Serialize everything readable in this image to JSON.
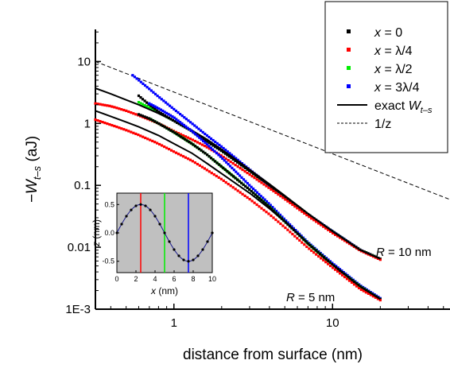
{
  "chart_data": [
    {
      "type": "scatter",
      "title": "",
      "xlabel": "distance from surface (nm)",
      "ylabel_prefix": "−W",
      "ylabel_sub": "t–s",
      "ylabel_suffix": " (aJ)",
      "xscale": "log",
      "yscale": "log",
      "xlim": [
        0.32,
        55
      ],
      "ylim": [
        0.001,
        33
      ],
      "xticks": [
        1,
        10
      ],
      "xtick_labels": [
        "1",
        "10"
      ],
      "yticks": [
        0.001,
        0.01,
        0.1,
        1,
        10
      ],
      "ytick_labels": [
        "1E-3",
        "0.01",
        "0.1",
        "1",
        "10"
      ],
      "grid": false,
      "legend_position": "top-right",
      "legend": [
        {
          "key": "x0",
          "pre": "x",
          "post": " = 0",
          "color": "#000000",
          "marker": "square"
        },
        {
          "key": "xq",
          "pre": "x",
          "post": " = λ/4",
          "color": "#ff0000",
          "marker": "square"
        },
        {
          "key": "xh",
          "pre": "x",
          "post": " = λ/2",
          "color": "#00ee00",
          "marker": "square"
        },
        {
          "key": "x3q",
          "pre": "x",
          "post": " = 3λ/4",
          "color": "#0000ff",
          "marker": "square"
        },
        {
          "key": "exact",
          "pre": "exact W",
          "sub": "t–s",
          "post": "",
          "color": "#000000",
          "marker": "line"
        },
        {
          "key": "ref",
          "pre": "1/z",
          "post": "",
          "color": "#000000",
          "marker": "dash"
        }
      ],
      "reference_line": {
        "name": "1/z",
        "x": [
          0.32,
          55
        ],
        "y": [
          10,
          0.059
        ]
      },
      "groups": [
        {
          "annotation_italic": "R",
          "annotation_rest": " = 10 nm",
          "series": [
            {
              "key": "x3q",
              "color": "#0000ff",
              "x": [
                0.55,
                0.6,
                0.7,
                0.8,
                1,
                1.3,
                1.6,
                2,
                3,
                4,
                5,
                7,
                10,
                15,
                20
              ],
              "y": [
                6.0,
                5.0,
                3.6,
                2.7,
                1.7,
                1.0,
                0.65,
                0.42,
                0.18,
                0.1,
                0.065,
                0.034,
                0.018,
                0.009,
                0.0065
              ]
            },
            {
              "key": "xh",
              "color": "#00ee00",
              "x": [
                0.6,
                0.7,
                0.8,
                1,
                1.3,
                1.6,
                2,
                3,
                4,
                5,
                7,
                10,
                15,
                20
              ],
              "y": [
                2.2,
                1.8,
                1.5,
                1.1,
                0.75,
                0.52,
                0.36,
                0.17,
                0.1,
                0.065,
                0.034,
                0.018,
                0.009,
                0.0065
              ]
            },
            {
              "key": "x0",
              "color": "#000000",
              "x": [
                0.6,
                0.7,
                0.8,
                1,
                1.3,
                1.6,
                2,
                3,
                4,
                5,
                7,
                10,
                15,
                20
              ],
              "y": [
                2.8,
                2.0,
                1.55,
                1.1,
                0.75,
                0.52,
                0.36,
                0.17,
                0.1,
                0.065,
                0.034,
                0.018,
                0.009,
                0.0065
              ]
            },
            {
              "key": "xq",
              "color": "#ff0000",
              "x": [
                0.32,
                0.4,
                0.5,
                0.6,
                0.8,
                1,
                1.3,
                1.6,
                2,
                3,
                4,
                5,
                7,
                10,
                15,
                20
              ],
              "y": [
                2.1,
                1.9,
                1.6,
                1.35,
                1.0,
                0.75,
                0.55,
                0.42,
                0.3,
                0.15,
                0.09,
                0.06,
                0.032,
                0.017,
                0.0088,
                0.0063
              ]
            },
            {
              "key": "exact",
              "color": "#000000",
              "x": [
                0.32,
                0.4,
                0.5,
                0.6,
                0.8,
                1,
                1.3,
                1.6,
                2,
                3,
                4,
                5,
                7,
                10,
                15,
                20
              ],
              "y": [
                3.7,
                3.0,
                2.4,
                2.0,
                1.45,
                1.1,
                0.77,
                0.56,
                0.38,
                0.18,
                0.105,
                0.068,
                0.035,
                0.018,
                0.009,
                0.0065
              ]
            }
          ]
        },
        {
          "annotation_italic": "R",
          "annotation_rest": " = 5 nm",
          "series": [
            {
              "key": "x3q",
              "color": "#0000ff",
              "x": [
                0.7,
                0.8,
                1,
                1.3,
                1.6,
                2,
                3,
                4,
                5,
                7,
                10,
                15,
                20
              ],
              "y": [
                2.1,
                1.75,
                1.25,
                0.75,
                0.47,
                0.28,
                0.1,
                0.05,
                0.028,
                0.012,
                0.0055,
                0.0024,
                0.0015
              ]
            },
            {
              "key": "xh",
              "color": "#00ee00",
              "x": [
                0.7,
                0.8,
                1,
                1.3,
                1.6,
                2,
                3,
                4,
                5,
                7,
                10,
                15,
                20
              ],
              "y": [
                1.2,
                1.0,
                0.72,
                0.47,
                0.32,
                0.2,
                0.085,
                0.045,
                0.026,
                0.0115,
                0.0052,
                0.0023,
                0.00145
              ]
            },
            {
              "key": "x0",
              "color": "#000000",
              "x": [
                0.6,
                0.7,
                0.8,
                1,
                1.3,
                1.6,
                2,
                3,
                4,
                5,
                7,
                10,
                15,
                20
              ],
              "y": [
                1.4,
                1.2,
                1.0,
                0.72,
                0.47,
                0.32,
                0.2,
                0.085,
                0.045,
                0.026,
                0.0115,
                0.0052,
                0.0023,
                0.00145
              ]
            },
            {
              "key": "xq",
              "color": "#ff0000",
              "x": [
                0.32,
                0.4,
                0.5,
                0.6,
                0.8,
                1,
                1.3,
                1.6,
                2,
                3,
                4,
                5,
                7,
                10,
                15,
                20
              ],
              "y": [
                1.15,
                0.95,
                0.78,
                0.65,
                0.47,
                0.35,
                0.25,
                0.18,
                0.125,
                0.06,
                0.034,
                0.021,
                0.0098,
                0.0047,
                0.0021,
                0.0014
              ]
            },
            {
              "key": "exact",
              "color": "#000000",
              "x": [
                0.32,
                0.4,
                0.5,
                0.6,
                0.8,
                1,
                1.3,
                1.6,
                2,
                3,
                4,
                5,
                7,
                10,
                15,
                20
              ],
              "y": [
                1.6,
                1.3,
                1.05,
                0.88,
                0.64,
                0.47,
                0.33,
                0.23,
                0.155,
                0.075,
                0.042,
                0.026,
                0.0115,
                0.0052,
                0.0023,
                0.00145
              ]
            }
          ]
        }
      ]
    },
    {
      "type": "line",
      "title": "",
      "xlabel": "x",
      "xlabel_unit": " (nm)",
      "ylabel": "z",
      "ylabel_unit": " (nm)",
      "xlim": [
        0,
        10
      ],
      "ylim": [
        -0.7,
        0.7
      ],
      "xticks": [
        0,
        2,
        4,
        6,
        8,
        10
      ],
      "yticks": [
        -0.5,
        0,
        0.5
      ],
      "ytick_labels": [
        "-0.5",
        "0.0",
        "0.5"
      ],
      "background": "#c0c0c0",
      "series": [
        {
          "name": "surface",
          "color": "#1a1a8c",
          "amplitude": 0.5,
          "wavelength": 10,
          "points_x": [
            0,
            0.5,
            1,
            1.5,
            2,
            2.5,
            3,
            3.5,
            4,
            4.5,
            5,
            5.5,
            6,
            6.5,
            7,
            7.5,
            8,
            8.5,
            9,
            9.5,
            10
          ]
        }
      ],
      "markers": [
        {
          "x": 2.5,
          "color": "#ff0000"
        },
        {
          "x": 5,
          "color": "#00ee00"
        },
        {
          "x": 7.5,
          "color": "#0000ff"
        }
      ]
    }
  ]
}
